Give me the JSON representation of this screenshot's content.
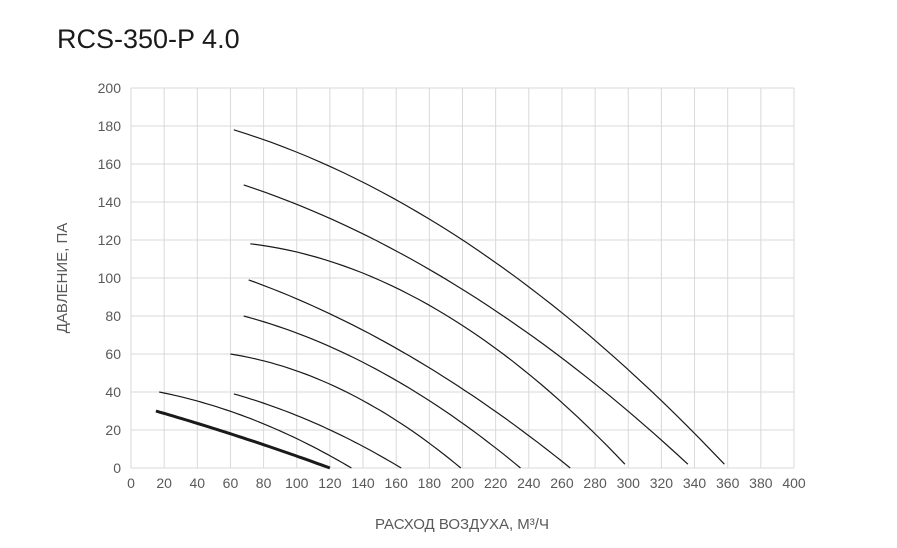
{
  "chart_data": {
    "type": "line",
    "title": "RCS-350-P 4.0",
    "xlabel": "РАСХОД ВОЗДУХА, М³/Ч",
    "ylabel": "ДАВЛЕНИЕ, ПА",
    "xlim": [
      0,
      400
    ],
    "ylim": [
      0,
      200
    ],
    "xticks": [
      0,
      20,
      40,
      60,
      80,
      100,
      120,
      140,
      160,
      180,
      200,
      220,
      240,
      260,
      280,
      300,
      320,
      340,
      360,
      380,
      400
    ],
    "yticks": [
      0,
      20,
      40,
      60,
      80,
      100,
      120,
      140,
      160,
      180,
      200
    ],
    "grid": true,
    "series": [
      {
        "name": "curve-1",
        "bold": true,
        "points": [
          [
            15,
            30
          ],
          [
            60,
            18
          ],
          [
            120,
            0
          ]
        ]
      },
      {
        "name": "curve-2",
        "points": [
          [
            17,
            40
          ],
          [
            75,
            25
          ],
          [
            133,
            0
          ]
        ]
      },
      {
        "name": "curve-3",
        "points": [
          [
            62,
            39
          ],
          [
            110,
            24
          ],
          [
            163,
            0
          ]
        ]
      },
      {
        "name": "curve-4",
        "points": [
          [
            60,
            60
          ],
          [
            130,
            40
          ],
          [
            199,
            0
          ]
        ]
      },
      {
        "name": "curve-5",
        "points": [
          [
            68,
            80
          ],
          [
            150,
            51
          ],
          [
            235,
            0
          ]
        ]
      },
      {
        "name": "curve-6",
        "points": [
          [
            71,
            99
          ],
          [
            160,
            63
          ],
          [
            265,
            0
          ]
        ]
      },
      {
        "name": "curve-7",
        "points": [
          [
            72,
            118
          ],
          [
            200,
            75
          ],
          [
            298,
            2
          ]
        ]
      },
      {
        "name": "curve-8",
        "points": [
          [
            68,
            149
          ],
          [
            200,
            94
          ],
          [
            336,
            2
          ]
        ]
      },
      {
        "name": "curve-9",
        "points": [
          [
            62,
            178
          ],
          [
            200,
            120
          ],
          [
            358,
            2
          ]
        ]
      }
    ]
  }
}
